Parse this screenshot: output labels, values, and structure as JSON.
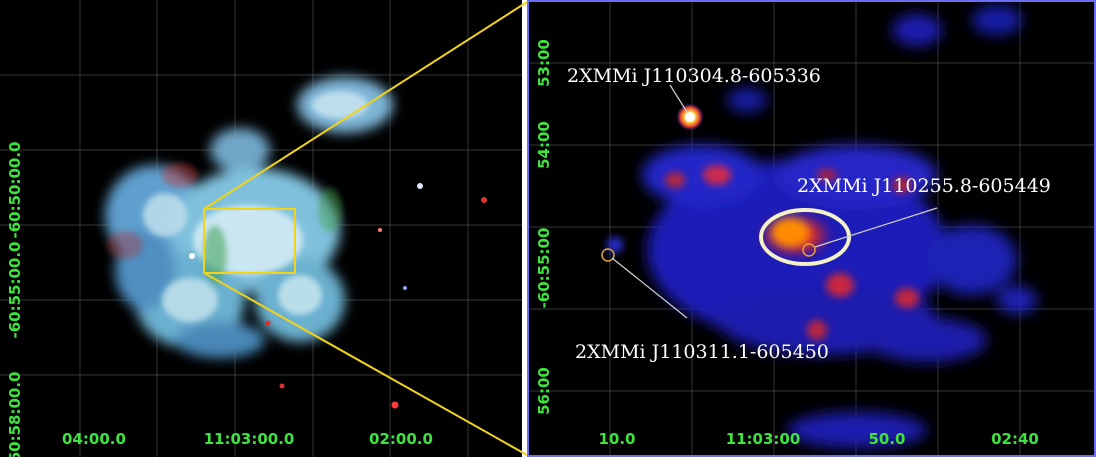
{
  "left_panel": {
    "y_ticks": [
      "-60:50:00.0",
      "-60:55:00.0",
      "-60:58:00.0"
    ],
    "x_ticks": [
      "04:00.0",
      "11:03:00.0",
      "02:00.0"
    ]
  },
  "right_panel": {
    "y_ticks": [
      "53:00",
      "54:00",
      "-60:55:00",
      "56:00"
    ],
    "x_ticks": [
      "10.0",
      "11:03:00",
      "50.0",
      "02:40"
    ],
    "sources": {
      "top": "2XMMi J110304.8-605336",
      "right": "2XMMi J110255.8-605449",
      "bottom": "2XMMi J110311.1-605450"
    }
  },
  "colors": {
    "tick_labels": "#3fe23f",
    "zoom_box": "#f2d21b",
    "frame": "#6d6df2",
    "source_label": "#ffffff"
  }
}
